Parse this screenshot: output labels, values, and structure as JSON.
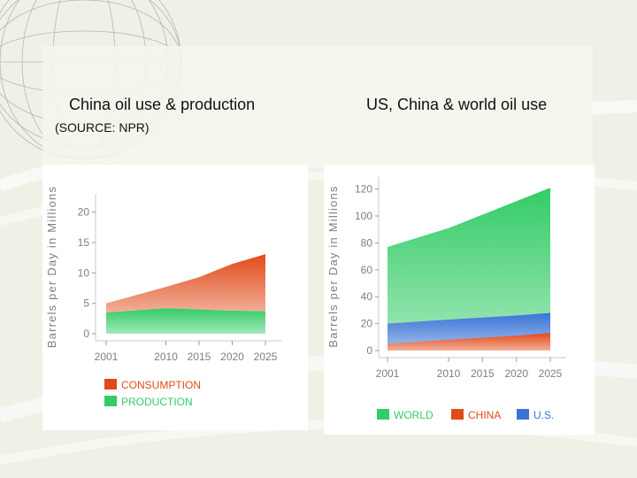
{
  "slide": {
    "title_left": "China oil use & production",
    "source": "(SOURCE: NPR)",
    "title_right": "US, China & world oil use"
  },
  "colors": {
    "consumption": "#e14a1a",
    "production": "#33cc66",
    "world": "#33cc66",
    "china": "#e14a1a",
    "us": "#3a73d6",
    "axis_text": "#7f7f7f"
  },
  "chart_data": [
    {
      "type": "area",
      "stacked": true,
      "title": "China oil use & production",
      "ylabel": "Barrels per Day in Millions",
      "xlabel": "",
      "x": [
        2001,
        2010,
        2015,
        2020,
        2025
      ],
      "x_tick_labels": [
        "2001",
        "2010",
        "2015",
        "2020",
        "2025"
      ],
      "y_ticks": [
        0,
        5,
        10,
        15,
        20
      ],
      "y_tick_labels": [
        "0",
        "5",
        "10",
        "15",
        "20"
      ],
      "ylim": [
        0,
        22
      ],
      "series": [
        {
          "name": "PRODUCTION",
          "values": [
            3.5,
            4.2,
            4.0,
            3.8,
            3.7
          ]
        },
        {
          "name": "CONSUMPTION",
          "values": [
            1.5,
            3.5,
            5.3,
            7.7,
            9.4
          ]
        }
      ],
      "legend": [
        {
          "label": "CONSUMPTION",
          "color_key": "consumption"
        },
        {
          "label": "PRODUCTION",
          "color_key": "production"
        }
      ],
      "legend_position": "bottom-left"
    },
    {
      "type": "area",
      "stacked": false,
      "title": "US, China & world oil use",
      "ylabel": "Barrels per Day in Millions",
      "xlabel": "",
      "x": [
        2001,
        2010,
        2015,
        2020,
        2025
      ],
      "x_tick_labels": [
        "2001",
        "2010",
        "2015",
        "2020",
        "2025"
      ],
      "y_ticks": [
        0,
        20,
        40,
        60,
        80,
        100,
        120
      ],
      "y_tick_labels": [
        "0",
        "20",
        "40",
        "60",
        "80",
        "100",
        "120"
      ],
      "ylim": [
        0,
        125
      ],
      "series": [
        {
          "name": "WORLD",
          "values": [
            77,
            91,
            101,
            111,
            121
          ]
        },
        {
          "name": "U.S.",
          "values": [
            20,
            23,
            24.5,
            26,
            28
          ]
        },
        {
          "name": "CHINA",
          "values": [
            5,
            8,
            9.5,
            11,
            13
          ]
        }
      ],
      "legend": [
        {
          "label": "WORLD",
          "color_key": "world"
        },
        {
          "label": "CHINA",
          "color_key": "china"
        },
        {
          "label": "U.S.",
          "color_key": "us"
        }
      ],
      "legend_position": "bottom"
    }
  ]
}
